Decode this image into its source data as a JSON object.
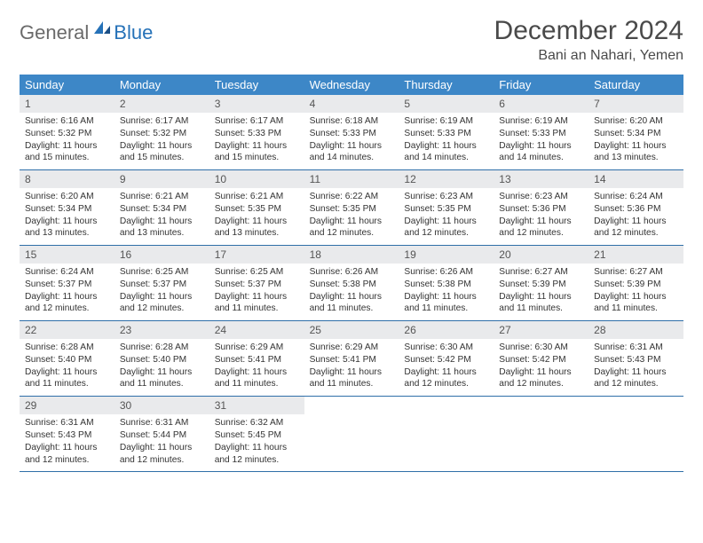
{
  "brand": {
    "part1": "General",
    "part2": "Blue"
  },
  "title": "December 2024",
  "location": "Bani an Nahari, Yemen",
  "colors": {
    "header_bg": "#3d87c7",
    "daynum_bg": "#e9eaec",
    "week_border": "#2f6fa8",
    "brand_gray": "#6a6a6a",
    "brand_blue": "#2672b8"
  },
  "weekdays": [
    "Sunday",
    "Monday",
    "Tuesday",
    "Wednesday",
    "Thursday",
    "Friday",
    "Saturday"
  ],
  "days": [
    {
      "n": 1,
      "sr": "6:16 AM",
      "ss": "5:32 PM",
      "dl": "11 hours and 15 minutes."
    },
    {
      "n": 2,
      "sr": "6:17 AM",
      "ss": "5:32 PM",
      "dl": "11 hours and 15 minutes."
    },
    {
      "n": 3,
      "sr": "6:17 AM",
      "ss": "5:33 PM",
      "dl": "11 hours and 15 minutes."
    },
    {
      "n": 4,
      "sr": "6:18 AM",
      "ss": "5:33 PM",
      "dl": "11 hours and 14 minutes."
    },
    {
      "n": 5,
      "sr": "6:19 AM",
      "ss": "5:33 PM",
      "dl": "11 hours and 14 minutes."
    },
    {
      "n": 6,
      "sr": "6:19 AM",
      "ss": "5:33 PM",
      "dl": "11 hours and 14 minutes."
    },
    {
      "n": 7,
      "sr": "6:20 AM",
      "ss": "5:34 PM",
      "dl": "11 hours and 13 minutes."
    },
    {
      "n": 8,
      "sr": "6:20 AM",
      "ss": "5:34 PM",
      "dl": "11 hours and 13 minutes."
    },
    {
      "n": 9,
      "sr": "6:21 AM",
      "ss": "5:34 PM",
      "dl": "11 hours and 13 minutes."
    },
    {
      "n": 10,
      "sr": "6:21 AM",
      "ss": "5:35 PM",
      "dl": "11 hours and 13 minutes."
    },
    {
      "n": 11,
      "sr": "6:22 AM",
      "ss": "5:35 PM",
      "dl": "11 hours and 12 minutes."
    },
    {
      "n": 12,
      "sr": "6:23 AM",
      "ss": "5:35 PM",
      "dl": "11 hours and 12 minutes."
    },
    {
      "n": 13,
      "sr": "6:23 AM",
      "ss": "5:36 PM",
      "dl": "11 hours and 12 minutes."
    },
    {
      "n": 14,
      "sr": "6:24 AM",
      "ss": "5:36 PM",
      "dl": "11 hours and 12 minutes."
    },
    {
      "n": 15,
      "sr": "6:24 AM",
      "ss": "5:37 PM",
      "dl": "11 hours and 12 minutes."
    },
    {
      "n": 16,
      "sr": "6:25 AM",
      "ss": "5:37 PM",
      "dl": "11 hours and 12 minutes."
    },
    {
      "n": 17,
      "sr": "6:25 AM",
      "ss": "5:37 PM",
      "dl": "11 hours and 11 minutes."
    },
    {
      "n": 18,
      "sr": "6:26 AM",
      "ss": "5:38 PM",
      "dl": "11 hours and 11 minutes."
    },
    {
      "n": 19,
      "sr": "6:26 AM",
      "ss": "5:38 PM",
      "dl": "11 hours and 11 minutes."
    },
    {
      "n": 20,
      "sr": "6:27 AM",
      "ss": "5:39 PM",
      "dl": "11 hours and 11 minutes."
    },
    {
      "n": 21,
      "sr": "6:27 AM",
      "ss": "5:39 PM",
      "dl": "11 hours and 11 minutes."
    },
    {
      "n": 22,
      "sr": "6:28 AM",
      "ss": "5:40 PM",
      "dl": "11 hours and 11 minutes."
    },
    {
      "n": 23,
      "sr": "6:28 AM",
      "ss": "5:40 PM",
      "dl": "11 hours and 11 minutes."
    },
    {
      "n": 24,
      "sr": "6:29 AM",
      "ss": "5:41 PM",
      "dl": "11 hours and 11 minutes."
    },
    {
      "n": 25,
      "sr": "6:29 AM",
      "ss": "5:41 PM",
      "dl": "11 hours and 11 minutes."
    },
    {
      "n": 26,
      "sr": "6:30 AM",
      "ss": "5:42 PM",
      "dl": "11 hours and 12 minutes."
    },
    {
      "n": 27,
      "sr": "6:30 AM",
      "ss": "5:42 PM",
      "dl": "11 hours and 12 minutes."
    },
    {
      "n": 28,
      "sr": "6:31 AM",
      "ss": "5:43 PM",
      "dl": "11 hours and 12 minutes."
    },
    {
      "n": 29,
      "sr": "6:31 AM",
      "ss": "5:43 PM",
      "dl": "11 hours and 12 minutes."
    },
    {
      "n": 30,
      "sr": "6:31 AM",
      "ss": "5:44 PM",
      "dl": "11 hours and 12 minutes."
    },
    {
      "n": 31,
      "sr": "6:32 AM",
      "ss": "5:45 PM",
      "dl": "11 hours and 12 minutes."
    }
  ],
  "labels": {
    "sunrise": "Sunrise:",
    "sunset": "Sunset:",
    "daylight": "Daylight:"
  },
  "start_weekday_index": 0,
  "total_cells": 35
}
